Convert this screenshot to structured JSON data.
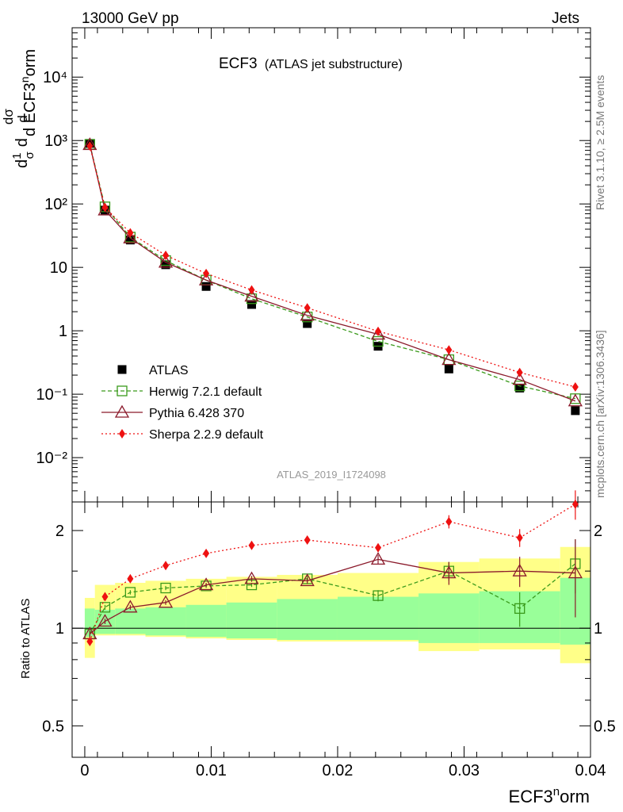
{
  "header": {
    "left": "13000 GeV pp",
    "right": "Jets"
  },
  "side_labels": {
    "rivet": "Rivet 3.1.10, ≥ 2.5M events",
    "mcplots": "mcplots.cern.ch [arXiv:1306.3436]"
  },
  "watermark": "ATLAS_2019_I1724098",
  "colors": {
    "atlas": "#000000",
    "herwig": "#3a9a1b",
    "pythia": "#8b1a2b",
    "sherpa": "#ee1111",
    "band_green": "#99ff99",
    "band_yellow": "#ffff88"
  },
  "chart_data": [
    {
      "type": "scatter",
      "title": "ECF3",
      "subtitle": "(ATLAS jet substructure)",
      "xlabel": "ECF3^norm",
      "ylabel": "1/σ dσ/d ECF3^norm",
      "yscale": "log",
      "xlim": [
        -0.001,
        0.04
      ],
      "ylim": [
        0.002,
        60000
      ],
      "y_ticks": [
        "10⁻²",
        "10⁻¹",
        "1",
        "10",
        "10²",
        "10³",
        "10⁴"
      ],
      "x": [
        0.0004,
        0.0016,
        0.0036,
        0.0064,
        0.0096,
        0.0132,
        0.0176,
        0.0232,
        0.0288,
        0.0344,
        0.0388
      ],
      "series": [
        {
          "name": "ATLAS",
          "marker": "square-filled",
          "values": [
            900,
            80,
            27,
            11,
            5.0,
            2.6,
            1.3,
            0.57,
            0.25,
            0.125,
            0.055
          ]
        },
        {
          "name": "Herwig 7.2.1 default",
          "marker": "square-open",
          "line": "dashed",
          "values": [
            870,
            90,
            30,
            12.8,
            6.3,
            3.2,
            1.65,
            0.68,
            0.35,
            0.135,
            0.085
          ]
        },
        {
          "name": "Pythia 6.428 370",
          "marker": "triangle-open",
          "line": "solid",
          "values": [
            860,
            80,
            29,
            12.0,
            6.3,
            3.5,
            1.75,
            0.88,
            0.35,
            0.17,
            0.078
          ]
        },
        {
          "name": "Sherpa 2.2.9 default",
          "marker": "diamond-filled",
          "line": "dotted",
          "values": [
            820,
            88,
            35,
            15.5,
            8.0,
            4.4,
            2.3,
            0.98,
            0.5,
            0.22,
            0.13
          ]
        }
      ],
      "legend": "left, lower-middle"
    },
    {
      "type": "scatter",
      "ylabel": "Ratio to ATLAS",
      "xlabel": "ECF3^norm",
      "yscale": "log",
      "ylim": [
        0.4,
        2.45
      ],
      "xlim": [
        -0.001,
        0.04
      ],
      "y_ticks": [
        "0.5",
        "1",
        "2"
      ],
      "x_ticks": [
        "0",
        "0.01",
        "0.02",
        "0.03",
        "0.04"
      ],
      "bands": {
        "edges": [
          0.0,
          0.0008,
          0.0024,
          0.0048,
          0.008,
          0.0112,
          0.0152,
          0.02,
          0.0264,
          0.0312,
          0.0376,
          0.04
        ],
        "green": [
          [
            0.94,
            1.15
          ],
          [
            0.96,
            1.14
          ],
          [
            0.96,
            1.15
          ],
          [
            0.95,
            1.16
          ],
          [
            0.94,
            1.18
          ],
          [
            0.93,
            1.2
          ],
          [
            0.92,
            1.23
          ],
          [
            0.92,
            1.25
          ],
          [
            0.9,
            1.28
          ],
          [
            0.9,
            1.3
          ],
          [
            0.89,
            1.43
          ]
        ],
        "yellow": [
          [
            0.81,
            1.24
          ],
          [
            0.95,
            1.36
          ],
          [
            0.95,
            1.38
          ],
          [
            0.94,
            1.4
          ],
          [
            0.93,
            1.42
          ],
          [
            0.92,
            1.44
          ],
          [
            0.91,
            1.46
          ],
          [
            0.91,
            1.48
          ],
          [
            0.85,
            1.6
          ],
          [
            0.86,
            1.64
          ],
          [
            0.78,
            1.78
          ]
        ]
      },
      "series": [
        {
          "name": "Herwig 7.2.1 default",
          "values": [
            0.96,
            1.16,
            1.29,
            1.33,
            1.35,
            1.36,
            1.42,
            1.26,
            1.5,
            1.15,
            1.58
          ],
          "err": [
            0.03,
            0.02,
            0.02,
            0.02,
            0.02,
            0.02,
            0.03,
            0.05,
            0.1,
            0.14,
            0.3
          ]
        },
        {
          "name": "Pythia 6.428 370",
          "values": [
            0.96,
            1.05,
            1.16,
            1.2,
            1.36,
            1.42,
            1.4,
            1.63,
            1.48,
            1.5,
            1.48
          ],
          "err": [
            0.02,
            0.02,
            0.02,
            0.02,
            0.02,
            0.03,
            0.03,
            0.05,
            0.12,
            0.16,
            0.4
          ]
        },
        {
          "name": "Sherpa 2.2.9 default",
          "values": [
            0.91,
            1.25,
            1.42,
            1.56,
            1.7,
            1.8,
            1.87,
            1.77,
            2.13,
            1.9,
            2.41
          ],
          "err": [
            0.02,
            0.02,
            0.02,
            0.02,
            0.02,
            0.03,
            0.03,
            0.05,
            0.1,
            0.12,
            0.25
          ]
        }
      ]
    }
  ]
}
